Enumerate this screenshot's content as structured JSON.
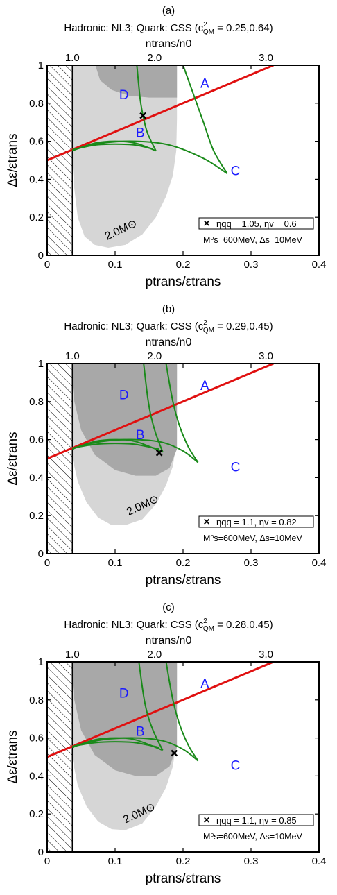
{
  "chart_data": [
    {
      "type": "line",
      "panel_label": "(a)",
      "title": "Hadronic: NL3; Quark: CSS (c²QM = 0.25,0.64)",
      "title_pre": "Hadronic: NL3; Quark: CSS (c",
      "title_sup": "2",
      "title_sub": "QM",
      "title_post": " = 0.25,0.64)",
      "xlabel": "ptrans/εtrans",
      "ylabel": "Δε/εtrans",
      "top_xlabel": "ntrans/n0",
      "xlim": [
        0,
        0.4
      ],
      "ylim": [
        0,
        1
      ],
      "xticks": [
        "0",
        "0.1",
        "0.2",
        "0.3",
        "0.4"
      ],
      "yticks": [
        "0",
        "0.2",
        "0.4",
        "0.6",
        "0.8",
        "1"
      ],
      "top_xticks": [
        {
          "label": "1.0",
          "x": 0.037
        },
        {
          "label": "2.0",
          "x": 0.158
        },
        {
          "label": "3.0",
          "x": 0.322
        }
      ],
      "hatch_xmax": 0.037,
      "region_labels": [
        {
          "label": "A",
          "x": 0.232,
          "y": 0.9
        },
        {
          "label": "B",
          "x": 0.137,
          "y": 0.64
        },
        {
          "label": "C",
          "x": 0.277,
          "y": 0.44
        },
        {
          "label": "D",
          "x": 0.113,
          "y": 0.84
        }
      ],
      "mass_label": "2.0M⊙",
      "mass_label_pos": {
        "x": 0.088,
        "y": 0.08
      },
      "light_region": [
        [
          0.037,
          1
        ],
        [
          0.191,
          1
        ],
        [
          0.191,
          0.72
        ],
        [
          0.19,
          0.55
        ],
        [
          0.185,
          0.42
        ],
        [
          0.175,
          0.31
        ],
        [
          0.16,
          0.2
        ],
        [
          0.14,
          0.11
        ],
        [
          0.115,
          0.055
        ],
        [
          0.09,
          0.04
        ],
        [
          0.07,
          0.055
        ],
        [
          0.055,
          0.1
        ],
        [
          0.045,
          0.2
        ],
        [
          0.04,
          0.35
        ],
        [
          0.037,
          0.5
        ]
      ],
      "dark_region": [
        [
          0.071,
          1
        ],
        [
          0.191,
          1
        ],
        [
          0.191,
          0.83
        ],
        [
          0.15,
          0.83
        ],
        [
          0.12,
          0.84
        ],
        [
          0.095,
          0.87
        ],
        [
          0.078,
          0.92
        ]
      ],
      "red_line": [
        [
          0,
          0.5
        ],
        [
          0.333,
          1.0
        ]
      ],
      "green_curves": [
        [
          [
            0.037,
            0.55
          ],
          [
            0.07,
            0.59
          ],
          [
            0.1,
            0.6
          ],
          [
            0.13,
            0.59
          ],
          [
            0.16,
            0.55
          ]
        ],
        [
          [
            0.037,
            0.555
          ],
          [
            0.07,
            0.58
          ],
          [
            0.1,
            0.585
          ],
          [
            0.13,
            0.58
          ],
          [
            0.155,
            0.56
          ]
        ],
        [
          [
            0.037,
            0.555
          ],
          [
            0.08,
            0.59
          ],
          [
            0.13,
            0.6
          ],
          [
            0.18,
            0.58
          ],
          [
            0.23,
            0.51
          ],
          [
            0.265,
            0.43
          ]
        ],
        [
          [
            0.132,
            1
          ],
          [
            0.137,
            0.82
          ],
          [
            0.142,
            0.72
          ],
          [
            0.148,
            0.64
          ],
          [
            0.16,
            0.55
          ]
        ],
        [
          [
            0.2,
            1
          ],
          [
            0.215,
            0.85
          ],
          [
            0.23,
            0.7
          ],
          [
            0.245,
            0.55
          ],
          [
            0.265,
            0.43
          ]
        ]
      ],
      "marker": {
        "x": 0.141,
        "y": 0.735
      },
      "legend_marker": "×",
      "legend_eta_qq": "ηqq = 1.05, ηv = 0.6",
      "legend_ms": "M⁰s=600MeV, Δs=10MeV"
    },
    {
      "type": "line",
      "panel_label": "(b)",
      "title": "Hadronic: NL3; Quark: CSS (c²QM = 0.29,0.45)",
      "title_pre": "Hadronic: NL3; Quark: CSS (c",
      "title_sup": "2",
      "title_sub": "QM",
      "title_post": " = 0.29,0.45)",
      "xlabel": "ptrans/εtrans",
      "ylabel": "Δε/εtrans",
      "top_xlabel": "ntrans/n0",
      "xlim": [
        0,
        0.4
      ],
      "ylim": [
        0,
        1
      ],
      "xticks": [
        "0",
        "0.1",
        "0.2",
        "0.3",
        "0.4"
      ],
      "yticks": [
        "0",
        "0.2",
        "0.4",
        "0.6",
        "0.8",
        "1"
      ],
      "top_xticks": [
        {
          "label": "1.0",
          "x": 0.037
        },
        {
          "label": "2.0",
          "x": 0.158
        },
        {
          "label": "3.0",
          "x": 0.322
        }
      ],
      "hatch_xmax": 0.037,
      "region_labels": [
        {
          "label": "A",
          "x": 0.232,
          "y": 0.88
        },
        {
          "label": "B",
          "x": 0.137,
          "y": 0.62
        },
        {
          "label": "C",
          "x": 0.277,
          "y": 0.45
        },
        {
          "label": "D",
          "x": 0.113,
          "y": 0.83
        }
      ],
      "mass_label": "2.0M⊙",
      "mass_label_pos": {
        "x": 0.12,
        "y": 0.2
      },
      "light_region": [
        [
          0.037,
          1
        ],
        [
          0.191,
          1
        ],
        [
          0.191,
          0.72
        ],
        [
          0.19,
          0.58
        ],
        [
          0.185,
          0.46
        ],
        [
          0.175,
          0.36
        ],
        [
          0.16,
          0.26
        ],
        [
          0.14,
          0.18
        ],
        [
          0.115,
          0.15
        ],
        [
          0.095,
          0.15
        ],
        [
          0.075,
          0.19
        ],
        [
          0.058,
          0.27
        ],
        [
          0.045,
          0.38
        ],
        [
          0.04,
          0.46
        ],
        [
          0.037,
          0.5
        ]
      ],
      "dark_region": [
        [
          0.037,
          1
        ],
        [
          0.191,
          1
        ],
        [
          0.191,
          0.55
        ],
        [
          0.18,
          0.45
        ],
        [
          0.16,
          0.41
        ],
        [
          0.13,
          0.41
        ],
        [
          0.1,
          0.44
        ],
        [
          0.07,
          0.52
        ],
        [
          0.05,
          0.65
        ],
        [
          0.04,
          0.8
        ],
        [
          0.037,
          0.9
        ]
      ],
      "red_line": [
        [
          0,
          0.5
        ],
        [
          0.333,
          1.0
        ]
      ],
      "green_curves": [
        [
          [
            0.037,
            0.55
          ],
          [
            0.07,
            0.59
          ],
          [
            0.1,
            0.6
          ],
          [
            0.13,
            0.59
          ],
          [
            0.17,
            0.535
          ]
        ],
        [
          [
            0.037,
            0.555
          ],
          [
            0.07,
            0.575
          ],
          [
            0.1,
            0.58
          ],
          [
            0.13,
            0.575
          ],
          [
            0.165,
            0.55
          ]
        ],
        [
          [
            0.037,
            0.555
          ],
          [
            0.08,
            0.59
          ],
          [
            0.13,
            0.6
          ],
          [
            0.17,
            0.585
          ],
          [
            0.2,
            0.54
          ],
          [
            0.222,
            0.48
          ]
        ],
        [
          [
            0.142,
            1
          ],
          [
            0.148,
            0.82
          ],
          [
            0.153,
            0.72
          ],
          [
            0.16,
            0.63
          ],
          [
            0.17,
            0.535
          ]
        ],
        [
          [
            0.175,
            1
          ],
          [
            0.185,
            0.8
          ],
          [
            0.195,
            0.67
          ],
          [
            0.208,
            0.56
          ],
          [
            0.222,
            0.48
          ]
        ]
      ],
      "marker": {
        "x": 0.165,
        "y": 0.53
      },
      "legend_marker": "×",
      "legend_eta_qq": "ηqq = 1.1, ηv = 0.82",
      "legend_ms": "M⁰s=600MeV, Δs=10MeV"
    },
    {
      "type": "line",
      "panel_label": "(c)",
      "title": "Hadronic: NL3; Quark: CSS (c²QM = 0.28,0.45)",
      "title_pre": "Hadronic: NL3; Quark: CSS (c",
      "title_sup": "2",
      "title_sub": "QM",
      "title_post": " = 0.28,0.45)",
      "xlabel": "ptrans/εtrans",
      "ylabel": "Δε/εtrans",
      "top_xlabel": "ntrans/n0",
      "xlim": [
        0,
        0.4
      ],
      "ylim": [
        0,
        1
      ],
      "xticks": [
        "0",
        "0.1",
        "0.2",
        "0.3",
        "0.4"
      ],
      "yticks": [
        "0",
        "0.2",
        "0.4",
        "0.6",
        "0.8",
        "1"
      ],
      "top_xticks": [
        {
          "label": "1.0",
          "x": 0.037
        },
        {
          "label": "2.0",
          "x": 0.158
        },
        {
          "label": "3.0",
          "x": 0.322
        }
      ],
      "hatch_xmax": 0.037,
      "region_labels": [
        {
          "label": "A",
          "x": 0.232,
          "y": 0.88
        },
        {
          "label": "B",
          "x": 0.137,
          "y": 0.63
        },
        {
          "label": "C",
          "x": 0.277,
          "y": 0.45
        },
        {
          "label": "D",
          "x": 0.113,
          "y": 0.83
        }
      ],
      "mass_label": "2.0M⊙",
      "mass_label_pos": {
        "x": 0.115,
        "y": 0.15
      },
      "light_region": [
        [
          0.037,
          1
        ],
        [
          0.191,
          1
        ],
        [
          0.191,
          0.72
        ],
        [
          0.19,
          0.58
        ],
        [
          0.185,
          0.45
        ],
        [
          0.175,
          0.34
        ],
        [
          0.16,
          0.24
        ],
        [
          0.14,
          0.15
        ],
        [
          0.115,
          0.115
        ],
        [
          0.095,
          0.12
        ],
        [
          0.075,
          0.16
        ],
        [
          0.058,
          0.24
        ],
        [
          0.045,
          0.35
        ],
        [
          0.04,
          0.44
        ],
        [
          0.037,
          0.5
        ]
      ],
      "dark_region": [
        [
          0.037,
          1
        ],
        [
          0.191,
          1
        ],
        [
          0.191,
          0.55
        ],
        [
          0.18,
          0.45
        ],
        [
          0.16,
          0.4
        ],
        [
          0.13,
          0.4
        ],
        [
          0.1,
          0.43
        ],
        [
          0.07,
          0.51
        ],
        [
          0.05,
          0.64
        ],
        [
          0.04,
          0.8
        ],
        [
          0.037,
          0.9
        ]
      ],
      "red_line": [
        [
          0,
          0.5
        ],
        [
          0.333,
          1.0
        ]
      ],
      "green_curves": [
        [
          [
            0.037,
            0.55
          ],
          [
            0.07,
            0.59
          ],
          [
            0.1,
            0.6
          ],
          [
            0.13,
            0.59
          ],
          [
            0.17,
            0.535
          ]
        ],
        [
          [
            0.037,
            0.555
          ],
          [
            0.07,
            0.575
          ],
          [
            0.1,
            0.58
          ],
          [
            0.13,
            0.575
          ],
          [
            0.165,
            0.55
          ]
        ],
        [
          [
            0.037,
            0.555
          ],
          [
            0.08,
            0.59
          ],
          [
            0.13,
            0.6
          ],
          [
            0.17,
            0.585
          ],
          [
            0.2,
            0.54
          ],
          [
            0.222,
            0.48
          ]
        ],
        [
          [
            0.135,
            1
          ],
          [
            0.142,
            0.82
          ],
          [
            0.148,
            0.72
          ],
          [
            0.157,
            0.63
          ],
          [
            0.17,
            0.535
          ]
        ],
        [
          [
            0.175,
            1
          ],
          [
            0.185,
            0.8
          ],
          [
            0.195,
            0.67
          ],
          [
            0.208,
            0.56
          ],
          [
            0.222,
            0.48
          ]
        ]
      ],
      "marker": {
        "x": 0.187,
        "y": 0.52
      },
      "legend_marker": "×",
      "legend_eta_qq": "ηqq = 1.1, ηv = 0.85",
      "legend_ms": "M⁰s=600MeV, Δs=10MeV"
    }
  ],
  "colors": {
    "light_region": "#d6d6d6",
    "dark_region": "#a8a8a8",
    "red_line": "#e01010",
    "green_curves": "#1a8a1a",
    "region_labels": "#1a1aff",
    "marker": "#000000"
  }
}
